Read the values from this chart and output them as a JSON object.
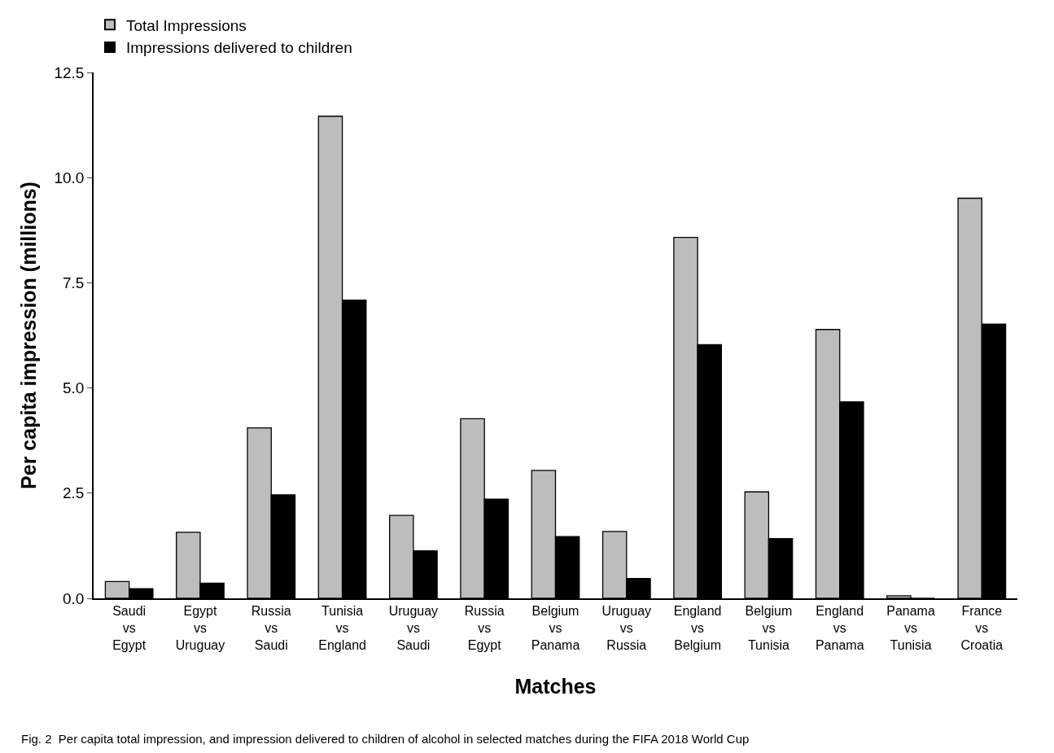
{
  "chart_data": {
    "type": "bar",
    "xlabel": "Matches",
    "ylabel": "Per capita impression (millions)",
    "categories": [
      "Saudi\nvs\nEgypt",
      "Egypt\nvs\nUruguay",
      "Russia\nvs\nSaudi",
      "Tunisia\nvs\nEngland",
      "Uruguay\nvs\nSaudi",
      "Russia\nvs\nEgypt",
      "Belgium\nvs\nPanama",
      "Uruguay\nvs\nRussia",
      "England\nvs\nBelgium",
      "Belgium\nvs\nTunisia",
      "England\nvs\nPanama",
      "Panama\nvs\nTunisia",
      "France\nvs\nCroatia"
    ],
    "series": [
      {
        "name": "Total Impressions",
        "color": "#bdbdbd",
        "values": [
          0.4,
          1.57,
          4.05,
          11.46,
          1.97,
          4.27,
          3.04,
          1.59,
          8.58,
          2.53,
          6.39,
          0.06,
          9.51
        ]
      },
      {
        "name": "Impressions delivered to children",
        "color": "#000000",
        "values": [
          0.23,
          0.36,
          2.46,
          7.09,
          1.13,
          2.36,
          1.47,
          0.47,
          6.03,
          1.42,
          4.67,
          0,
          6.52
        ]
      }
    ],
    "ylim": [
      0,
      12.5
    ],
    "yticks": [
      {
        "value": 0,
        "label": "0.0"
      },
      2.5,
      {
        "value": 5,
        "label": "5.0"
      },
      7.5,
      {
        "value": 10,
        "label": "10.0"
      },
      12.5
    ],
    "legend": "top left",
    "annotations": [
      "Fig. 2  Per capita total impression, and impression delivered to children of alcohol in selected matches during the FIFA 2018 World Cup"
    ]
  }
}
